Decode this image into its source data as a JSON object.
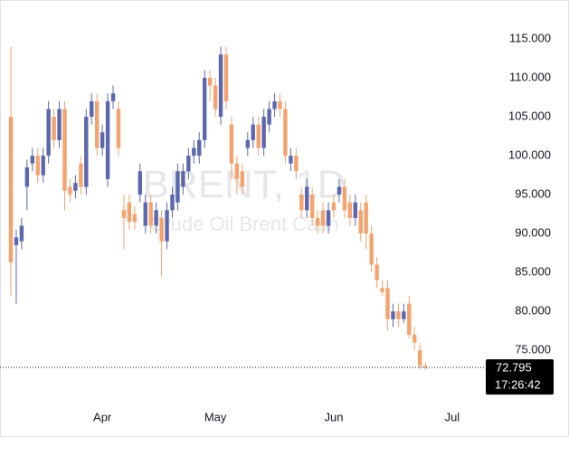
{
  "chart_data": {
    "type": "candlestick",
    "watermark_title": "BRENT, 1D",
    "watermark_subtitle": "Crude Oil Brent Cash",
    "categories": [
      null,
      null,
      null,
      null,
      null,
      null,
      null,
      null,
      null,
      null,
      null,
      null,
      null,
      null,
      null,
      null,
      null,
      "Apr",
      null,
      null,
      null,
      null,
      null,
      null,
      null,
      null,
      null,
      null,
      null,
      null,
      null,
      null,
      null,
      null,
      null,
      null,
      null,
      null,
      "May",
      null,
      null,
      null,
      null,
      null,
      null,
      null,
      null,
      null,
      null,
      null,
      null,
      null,
      null,
      null,
      null,
      null,
      null,
      null,
      null,
      null,
      "Jun",
      null,
      null,
      null,
      null,
      null,
      null,
      null,
      null,
      null,
      null,
      null,
      null,
      null,
      null,
      null,
      null,
      null,
      null,
      null,
      null,
      null,
      "Jul",
      null,
      null,
      null
    ],
    "open": [
      105,
      88.5,
      89,
      96,
      99,
      100,
      97.5,
      100,
      105,
      102,
      106,
      96,
      95.5,
      99,
      96,
      105,
      107,
      101,
      97,
      107,
      106,
      93,
      94,
      92.5,
      95,
      91,
      94,
      91,
      92,
      89,
      93,
      94,
      96,
      98,
      100,
      100,
      102,
      110,
      109,
      105,
      113,
      104,
      99,
      98,
      101,
      102,
      104,
      101,
      104,
      106,
      107,
      106,
      99,
      100,
      95,
      93,
      95,
      92,
      93,
      91,
      94,
      95,
      96,
      94,
      92,
      93,
      94,
      90,
      86,
      83,
      83,
      79,
      80,
      79,
      81,
      77,
      75,
      73,
      null,
      null,
      null,
      null,
      null,
      null,
      null,
      null
    ],
    "high": [
      114,
      90.5,
      92,
      99.5,
      101,
      101,
      101,
      107,
      106,
      107,
      107,
      97,
      97.5,
      100,
      106,
      108,
      108,
      104,
      108,
      109,
      107,
      95,
      95,
      93.5,
      99,
      95,
      95,
      94,
      93,
      94,
      96,
      99,
      99,
      101,
      102,
      103,
      111,
      111,
      110,
      114,
      114,
      105,
      100,
      99,
      103,
      105,
      105,
      106,
      107,
      108,
      108,
      107,
      101,
      101,
      96,
      97,
      96,
      93,
      94,
      94,
      95,
      97,
      97,
      95,
      95,
      94,
      95,
      91,
      87,
      84,
      84,
      81,
      81,
      81,
      82,
      78,
      76,
      73.5,
      null,
      null,
      null,
      null,
      null,
      null,
      null,
      null
    ],
    "low": [
      82,
      81,
      88,
      93,
      98,
      96.5,
      96.5,
      99,
      101,
      101,
      93,
      94,
      94.5,
      95,
      95,
      104,
      100,
      100,
      96,
      106,
      100,
      88,
      90.5,
      90.5,
      94,
      90,
      90,
      90,
      84.5,
      88,
      92,
      93,
      95,
      97,
      99,
      99,
      101,
      107,
      105,
      104,
      106,
      97,
      95,
      95,
      100,
      101,
      100,
      100,
      103,
      105,
      105,
      99,
      98,
      97,
      92,
      92,
      91,
      90,
      90,
      90,
      92,
      94,
      92,
      91,
      91,
      89,
      88,
      85,
      83,
      82,
      77.5,
      78,
      78,
      78.5,
      76.5,
      75,
      72.5,
      72.5,
      null,
      null,
      null,
      null,
      null,
      null,
      null,
      null
    ],
    "close": [
      86.3,
      89.5,
      91,
      98.5,
      100,
      97.5,
      100,
      106,
      102,
      106,
      95.5,
      95,
      96.5,
      96,
      105,
      107,
      101,
      103,
      107,
      108,
      101,
      92,
      91.5,
      91.5,
      98,
      94,
      91,
      93,
      89,
      93,
      95,
      98,
      98,
      100,
      101,
      102,
      110,
      109,
      106,
      113,
      107,
      99,
      97,
      96,
      102,
      104,
      101,
      105,
      106,
      107,
      106,
      100,
      100,
      98,
      93,
      96,
      92,
      91,
      91,
      93,
      93,
      96,
      93,
      92,
      94,
      90,
      90,
      86,
      84,
      82.5,
      79,
      80,
      79,
      80,
      77,
      76,
      73,
      72.795,
      null,
      null,
      null,
      null,
      null,
      null,
      null,
      null
    ],
    "up_color": "#5b68ad",
    "down_color": "#f4a36e",
    "ylim": [
      67.7,
      120
    ],
    "yticks": [
      {
        "value": 75,
        "label": "75.000"
      },
      {
        "value": 80,
        "label": "80.000"
      },
      {
        "value": 85,
        "label": "85.000"
      },
      {
        "value": 90,
        "label": "90.000"
      },
      {
        "value": 95,
        "label": "95.000"
      },
      {
        "value": 100,
        "label": "100.000"
      },
      {
        "value": 105,
        "label": "105.000"
      },
      {
        "value": 110,
        "label": "110.000"
      },
      {
        "value": 115,
        "label": "115.000"
      }
    ],
    "last_price": 72.795,
    "countdown": "17:26:42"
  }
}
